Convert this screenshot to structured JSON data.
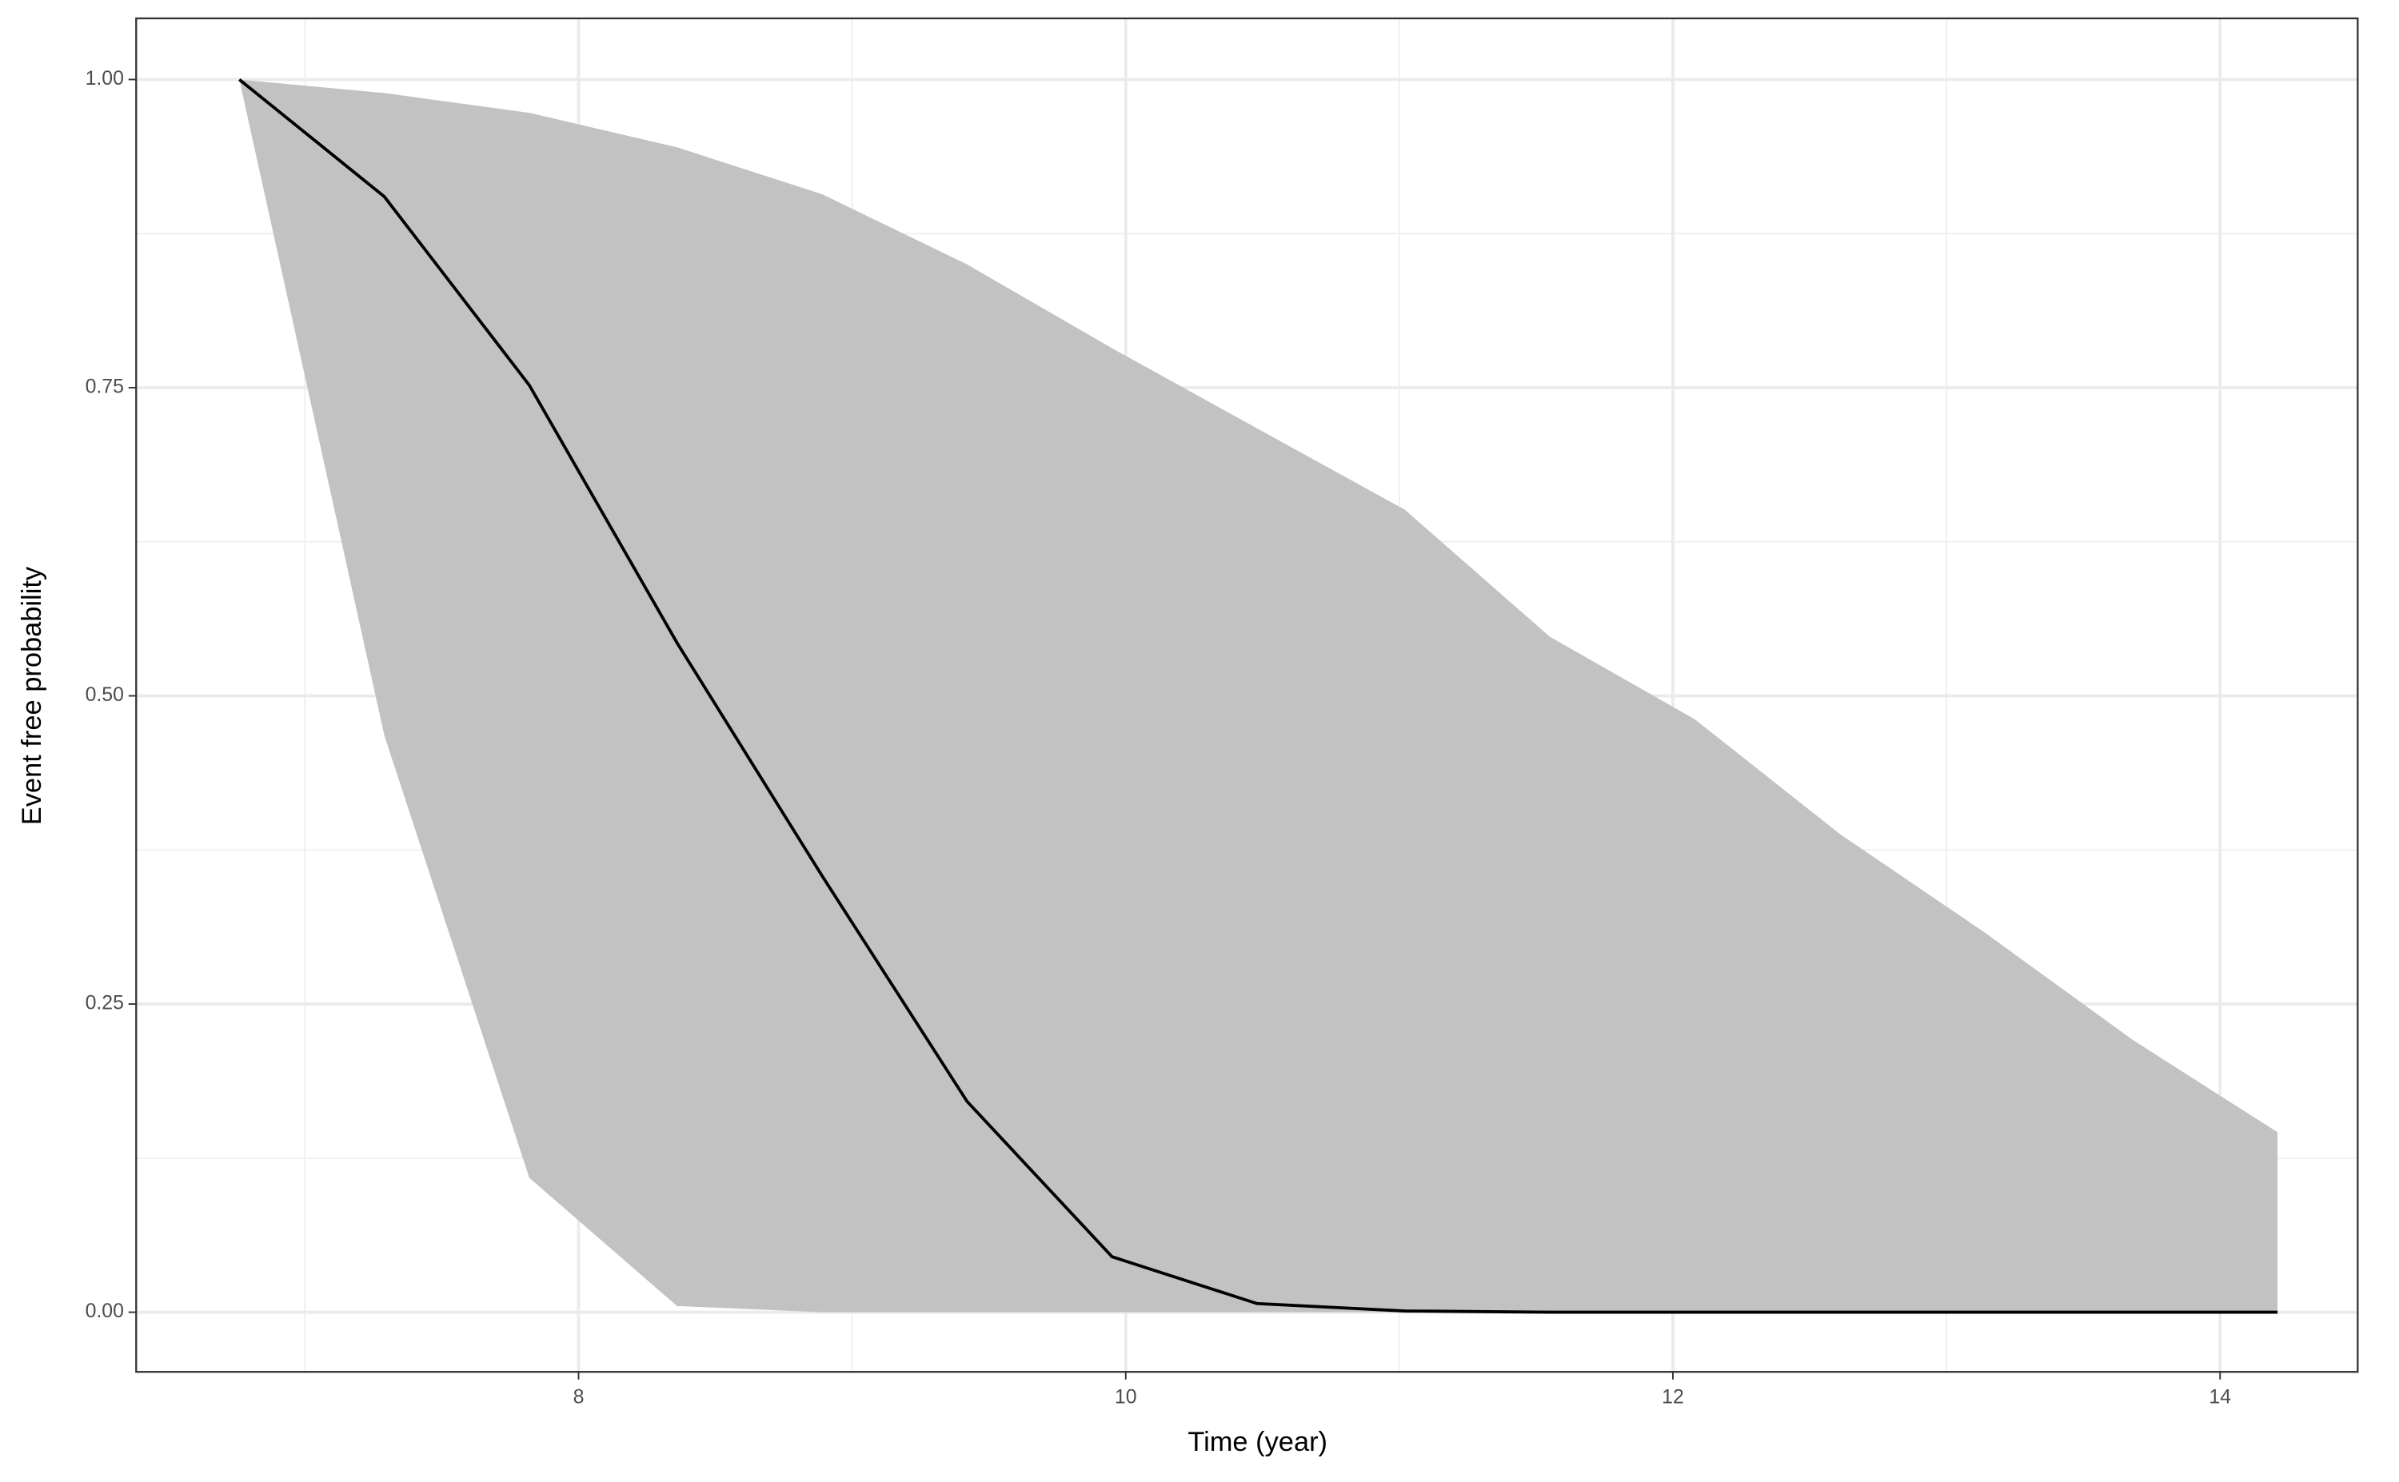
{
  "chart_data": {
    "type": "line",
    "x_label": "Time (year)",
    "y_label": "Event free probability",
    "x": [
      6.76,
      7.29,
      7.82,
      8.36,
      8.89,
      9.42,
      9.95,
      10.48,
      11.02,
      11.55,
      12.08,
      12.61,
      13.14,
      13.68,
      14.21
    ],
    "values": [
      1.0,
      0.905,
      0.752,
      0.543,
      0.354,
      0.171,
      0.045,
      0.007,
      0.001,
      0.0,
      0.0,
      0.0,
      0.0,
      0.0,
      0.0
    ],
    "upper": [
      1.0,
      0.989,
      0.973,
      0.945,
      0.907,
      0.85,
      0.782,
      0.717,
      0.651,
      0.548,
      0.481,
      0.388,
      0.308,
      0.221,
      0.146
    ],
    "lower": [
      1.0,
      0.468,
      0.109,
      0.005,
      0.0,
      0.0,
      0.0,
      0.0,
      0.0,
      0.0,
      0.0,
      0.0,
      0.0,
      0.0,
      0.0
    ],
    "color": "#000000",
    "band_color": "#c2c2c2",
    "xlim": [
      6.383,
      14.503
    ],
    "ylim": [
      -0.0484,
      1.0496
    ],
    "xticks": [
      8,
      10,
      12,
      14
    ],
    "yticks": [
      {
        "value": 0,
        "label": "0.00"
      },
      {
        "value": 0.25,
        "label": "0.25"
      },
      {
        "value": 0.5,
        "label": "0.50"
      },
      {
        "value": 0.75,
        "label": "0.75"
      },
      {
        "value": 1,
        "label": "1.00"
      }
    ],
    "x_minor_grid": [
      7,
      9,
      11,
      13
    ],
    "y_minor_grid": [
      0.125,
      0.375,
      0.625,
      0.875
    ],
    "grid": true
  }
}
